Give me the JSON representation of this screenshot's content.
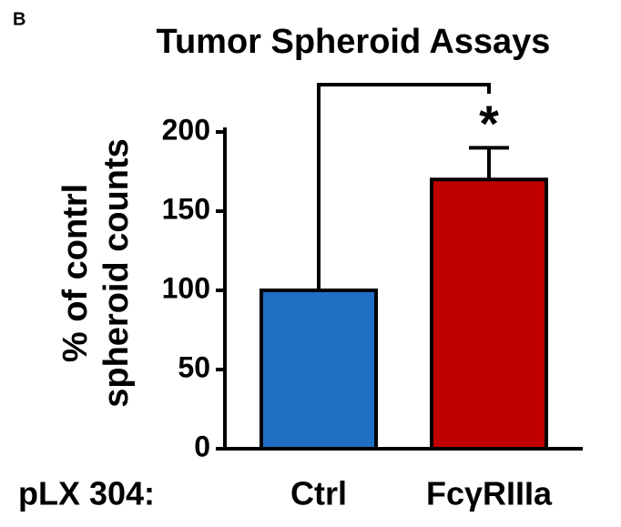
{
  "chart_data": {
    "type": "bar",
    "panel_label": "B",
    "title": "Tumor Spheroid Assays",
    "y_label": [
      "% of contrl",
      "spheroid counts"
    ],
    "x_label": "pLX 304:",
    "categories": [
      "Ctrl",
      "FcγRIIIa"
    ],
    "values": [
      100,
      170
    ],
    "errors": [
      null,
      20
    ],
    "colors": [
      "#1f6fc5",
      "#c00000"
    ],
    "ylim": [
      0,
      200
    ],
    "yticks": [
      0,
      50,
      100,
      150,
      200
    ],
    "significance": {
      "between": [
        0,
        1
      ],
      "label": "*"
    }
  }
}
